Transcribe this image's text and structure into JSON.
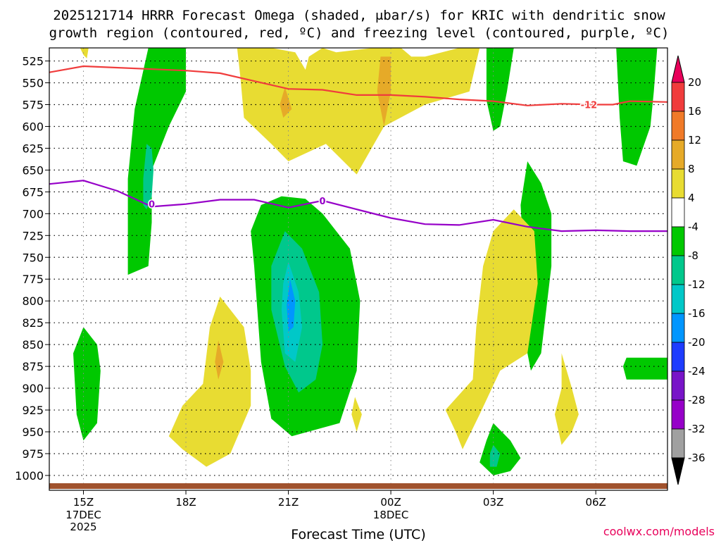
{
  "chart_data": {
    "type": "contour",
    "title_line1": "2025121714 HRRR Forecast Omega (shaded, μbar/s) for KRIC with dendritic snow",
    "title_line2": "growth region (contoured, red, ºC) and freezing level (contoured, purple, ºC)",
    "xlabel": "Forecast Time (UTC)",
    "credit": "coolwx.com/models",
    "x_ticks": [
      {
        "hour": 15,
        "label": "15Z",
        "sub1": "17DEC",
        "sub2": "2025"
      },
      {
        "hour": 18,
        "label": "18Z",
        "sub1": "",
        "sub2": ""
      },
      {
        "hour": 21,
        "label": "21Z",
        "sub1": "",
        "sub2": ""
      },
      {
        "hour": 24,
        "label": "00Z",
        "sub1": "18DEC",
        "sub2": ""
      },
      {
        "hour": 27,
        "label": "03Z",
        "sub1": "",
        "sub2": ""
      },
      {
        "hour": 30,
        "label": "06Z",
        "sub1": "",
        "sub2": ""
      }
    ],
    "x_range_hours": [
      14,
      32.1
    ],
    "y_ticks": [
      525,
      550,
      575,
      600,
      625,
      650,
      675,
      700,
      725,
      750,
      775,
      800,
      825,
      850,
      875,
      900,
      925,
      950,
      975,
      1000
    ],
    "y_range_hpa": [
      510,
      1017
    ],
    "colorbar": {
      "levels": [
        20,
        16,
        12,
        8,
        4,
        -4,
        -8,
        -12,
        -16,
        -20,
        -24,
        -28,
        -32,
        -36
      ],
      "colors": [
        "#e8005a",
        "#f03c3c",
        "#f07a28",
        "#e6aa28",
        "#e8dc32",
        "#ffffff",
        "#00c800",
        "#00c88c",
        "#00c8c8",
        "#0096ff",
        "#1e3cff",
        "#7814c8",
        "#9600c8",
        "#a0a0a0",
        "#000000"
      ]
    },
    "shaded_regions": [
      {
        "name": "yellow-top-a",
        "fill": "#e8dc32",
        "points": [
          [
            14.9,
            510
          ],
          [
            15.15,
            510
          ],
          [
            15.1,
            522
          ],
          [
            15.0,
            518
          ]
        ]
      },
      {
        "name": "green-upper-1",
        "fill": "#00c800",
        "points": [
          [
            16.9,
            510
          ],
          [
            18.0,
            510
          ],
          [
            18.0,
            560
          ],
          [
            17.5,
            600
          ],
          [
            17.0,
            650
          ],
          [
            17.0,
            690
          ],
          [
            17.0,
            710
          ],
          [
            16.9,
            760
          ],
          [
            16.3,
            770
          ],
          [
            16.3,
            660
          ],
          [
            16.5,
            580
          ]
        ]
      },
      {
        "name": "teal-upper-1",
        "fill": "#00c88c",
        "points": [
          [
            16.85,
            620
          ],
          [
            17.0,
            625
          ],
          [
            17.05,
            650
          ],
          [
            17.0,
            680
          ],
          [
            16.85,
            695
          ],
          [
            16.75,
            690
          ],
          [
            16.75,
            660
          ]
        ]
      },
      {
        "name": "yellow-upper-1",
        "fill": "#e8dc32",
        "points": [
          [
            19.5,
            510
          ],
          [
            20.5,
            510
          ],
          [
            21.2,
            515
          ],
          [
            21.5,
            535
          ],
          [
            21.6,
            520
          ],
          [
            22.0,
            510
          ],
          [
            22.4,
            515
          ],
          [
            23.5,
            510
          ],
          [
            24.3,
            510
          ],
          [
            24.6,
            520
          ],
          [
            25.0,
            520
          ],
          [
            25.5,
            515
          ],
          [
            26.0,
            510
          ],
          [
            26.6,
            510
          ],
          [
            26.3,
            560
          ],
          [
            25.0,
            575
          ],
          [
            23.8,
            600
          ],
          [
            23.0,
            655
          ],
          [
            22.1,
            620
          ],
          [
            21.0,
            640
          ],
          [
            20.5,
            620
          ],
          [
            19.7,
            590
          ],
          [
            19.6,
            545
          ]
        ]
      },
      {
        "name": "orange-upper-1",
        "fill": "#e6aa28",
        "points": [
          [
            23.7,
            520
          ],
          [
            24.0,
            520
          ],
          [
            24.0,
            560
          ],
          [
            23.8,
            600
          ],
          [
            23.6,
            560
          ]
        ]
      },
      {
        "name": "orange-upper-2",
        "fill": "#e6aa28",
        "points": [
          [
            20.9,
            555
          ],
          [
            21.1,
            580
          ],
          [
            20.85,
            590
          ],
          [
            20.75,
            575
          ]
        ]
      },
      {
        "name": "green-upper-2",
        "fill": "#00c800",
        "points": [
          [
            26.8,
            510
          ],
          [
            27.6,
            510
          ],
          [
            27.4,
            560
          ],
          [
            27.2,
            600
          ],
          [
            27.0,
            605
          ],
          [
            26.8,
            570
          ]
        ]
      },
      {
        "name": "green-upper-3",
        "fill": "#00c800",
        "points": [
          [
            30.6,
            510
          ],
          [
            31.8,
            510
          ],
          [
            31.7,
            560
          ],
          [
            31.6,
            600
          ],
          [
            31.2,
            645
          ],
          [
            30.8,
            640
          ],
          [
            30.7,
            590
          ]
        ]
      },
      {
        "name": "green-mid-1",
        "fill": "#00c800",
        "points": [
          [
            20.2,
            690
          ],
          [
            20.8,
            680
          ],
          [
            21.5,
            683
          ],
          [
            22.0,
            700
          ],
          [
            22.8,
            740
          ],
          [
            23.1,
            800
          ],
          [
            23.0,
            880
          ],
          [
            22.5,
            940
          ],
          [
            21.1,
            955
          ],
          [
            20.5,
            935
          ],
          [
            20.2,
            870
          ],
          [
            20.0,
            760
          ],
          [
            19.9,
            720
          ]
        ]
      },
      {
        "name": "teal-mid-1",
        "fill": "#00c88c",
        "points": [
          [
            20.9,
            720
          ],
          [
            21.4,
            740
          ],
          [
            21.9,
            790
          ],
          [
            22.0,
            850
          ],
          [
            21.8,
            890
          ],
          [
            21.3,
            905
          ],
          [
            20.9,
            875
          ],
          [
            20.5,
            810
          ],
          [
            20.5,
            760
          ]
        ]
      },
      {
        "name": "cyan-mid-1",
        "fill": "#00c8c8",
        "points": [
          [
            21.0,
            755
          ],
          [
            21.3,
            790
          ],
          [
            21.4,
            830
          ],
          [
            21.2,
            870
          ],
          [
            20.9,
            860
          ],
          [
            20.8,
            810
          ],
          [
            20.85,
            780
          ]
        ]
      },
      {
        "name": "blue-mid-1",
        "fill": "#0096ff",
        "points": [
          [
            21.05,
            775
          ],
          [
            21.2,
            800
          ],
          [
            21.15,
            830
          ],
          [
            21.0,
            835
          ],
          [
            20.95,
            805
          ]
        ]
      },
      {
        "name": "green-mid-2",
        "fill": "#00c800",
        "points": [
          [
            28.0,
            640
          ],
          [
            28.4,
            665
          ],
          [
            28.7,
            700
          ],
          [
            28.7,
            760
          ],
          [
            28.4,
            860
          ],
          [
            28.1,
            880
          ],
          [
            27.9,
            840
          ],
          [
            27.9,
            760
          ],
          [
            27.8,
            690
          ]
        ]
      },
      {
        "name": "yellow-mid-1",
        "fill": "#e8dc32",
        "points": [
          [
            27.6,
            695
          ],
          [
            28.2,
            720
          ],
          [
            28.3,
            780
          ],
          [
            28.0,
            860
          ],
          [
            27.2,
            880
          ],
          [
            26.6,
            930
          ],
          [
            26.1,
            970
          ],
          [
            25.9,
            950
          ],
          [
            25.6,
            925
          ],
          [
            26.4,
            890
          ],
          [
            26.5,
            830
          ],
          [
            26.7,
            760
          ],
          [
            27.0,
            720
          ]
        ]
      },
      {
        "name": "green-low-1",
        "fill": "#00c800",
        "points": [
          [
            15.0,
            830
          ],
          [
            15.4,
            850
          ],
          [
            15.5,
            880
          ],
          [
            15.4,
            940
          ],
          [
            15.0,
            960
          ],
          [
            14.8,
            930
          ],
          [
            14.7,
            860
          ]
        ]
      },
      {
        "name": "yellow-low-1",
        "fill": "#e8dc32",
        "points": [
          [
            19.0,
            795
          ],
          [
            19.7,
            830
          ],
          [
            19.9,
            880
          ],
          [
            19.9,
            920
          ],
          [
            19.3,
            975
          ],
          [
            18.6,
            990
          ],
          [
            17.9,
            970
          ],
          [
            17.5,
            955
          ],
          [
            17.9,
            920
          ],
          [
            18.5,
            895
          ],
          [
            18.7,
            830
          ]
        ]
      },
      {
        "name": "orange-low-1",
        "fill": "#e6aa28",
        "points": [
          [
            18.95,
            845
          ],
          [
            19.1,
            870
          ],
          [
            18.95,
            890
          ],
          [
            18.85,
            870
          ]
        ]
      },
      {
        "name": "yellow-low-2",
        "fill": "#e8dc32",
        "points": [
          [
            22.95,
            910
          ],
          [
            23.15,
            930
          ],
          [
            23.0,
            950
          ],
          [
            22.85,
            930
          ]
        ]
      },
      {
        "name": "yellow-low-3",
        "fill": "#e8dc32",
        "points": [
          [
            29.0,
            860
          ],
          [
            29.3,
            900
          ],
          [
            29.5,
            930
          ],
          [
            29.3,
            950
          ],
          [
            29.0,
            965
          ],
          [
            28.8,
            930
          ],
          [
            29.0,
            900
          ]
        ]
      },
      {
        "name": "green-low-2",
        "fill": "#00c800",
        "points": [
          [
            27.0,
            940
          ],
          [
            27.5,
            960
          ],
          [
            27.8,
            980
          ],
          [
            27.5,
            995
          ],
          [
            27.0,
            1000
          ],
          [
            26.6,
            985
          ],
          [
            26.8,
            960
          ]
        ]
      },
      {
        "name": "teal-low-2",
        "fill": "#00c88c",
        "points": [
          [
            27.0,
            965
          ],
          [
            27.2,
            975
          ],
          [
            27.1,
            990
          ],
          [
            26.9,
            990
          ],
          [
            26.9,
            975
          ]
        ]
      },
      {
        "name": "green-right-edge",
        "fill": "#00c800",
        "points": [
          [
            30.9,
            865
          ],
          [
            32.1,
            865
          ],
          [
            32.1,
            890
          ],
          [
            30.9,
            890
          ],
          [
            30.8,
            875
          ]
        ]
      }
    ],
    "dendritic_line": {
      "color": "#f03c3c",
      "label": "-12",
      "label_at": [
        29.8,
        575
      ],
      "points": [
        [
          14,
          538
        ],
        [
          15,
          531
        ],
        [
          18,
          536
        ],
        [
          19,
          539
        ],
        [
          20,
          548
        ],
        [
          21,
          557
        ],
        [
          22,
          558
        ],
        [
          23,
          564
        ],
        [
          24,
          564
        ],
        [
          25,
          566
        ],
        [
          26,
          569
        ],
        [
          27,
          571
        ],
        [
          28,
          576
        ],
        [
          29,
          574
        ],
        [
          30,
          575
        ],
        [
          30.5,
          575
        ],
        [
          31,
          571
        ],
        [
          32.1,
          572
        ]
      ]
    },
    "freezing_line": {
      "color": "#9600c8",
      "label": "0",
      "labels_at": [
        [
          17.0,
          689
        ],
        [
          22.0,
          685
        ]
      ],
      "points": [
        [
          14,
          666
        ],
        [
          15,
          662
        ],
        [
          16,
          674
        ],
        [
          17,
          692
        ],
        [
          18,
          689
        ],
        [
          19,
          684
        ],
        [
          20,
          684
        ],
        [
          21,
          693
        ],
        [
          22,
          685
        ],
        [
          23,
          695
        ],
        [
          24,
          705
        ],
        [
          25,
          712
        ],
        [
          26,
          713
        ],
        [
          27,
          707
        ],
        [
          28,
          715
        ],
        [
          29,
          720
        ],
        [
          30,
          719
        ],
        [
          31,
          720
        ],
        [
          32.1,
          720
        ]
      ]
    }
  }
}
